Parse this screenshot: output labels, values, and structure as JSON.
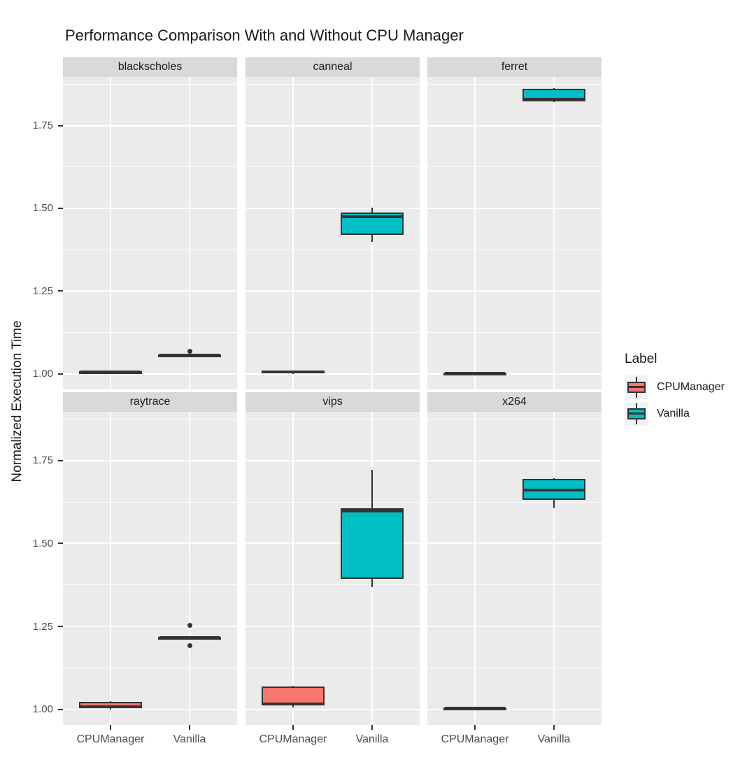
{
  "chart_data": {
    "type": "boxplot",
    "title": "Performance Comparison With and Without CPU Manager",
    "xlabel": "",
    "ylabel": "Normalized Execution Time",
    "categories": [
      "CPUManager",
      "Vanilla"
    ],
    "y_ticks": [
      "1.00",
      "1.25",
      "1.50",
      "1.75"
    ],
    "y_tick_values": [
      1.0,
      1.25,
      1.5,
      1.75
    ],
    "y_minor_values": [
      1.125,
      1.375,
      1.625,
      1.875
    ],
    "y_domain": [
      0.953,
      1.897
    ],
    "grid": "on",
    "facet_layout": {
      "rows": 2,
      "cols": 3
    },
    "legend": {
      "position": "right",
      "title": "Label",
      "entries": [
        {
          "label": "CPUManager",
          "color": "#F8766D"
        },
        {
          "label": "Vanilla",
          "color": "#00BFC4"
        }
      ]
    },
    "style": {
      "panel_bg": "#ebebeb",
      "strip_bg": "#d9d9d9",
      "gridline": "#ffffff",
      "box_stroke": "#333333",
      "tick_color": "#333333",
      "tick_label_color": "#4d4d4d"
    },
    "facets": [
      {
        "name": "blackscholes",
        "boxes": [
          {
            "group": "CPUManager",
            "color": "#F8766D",
            "whisker_low": 1.003,
            "q1": 1.004,
            "median": 1.006,
            "q3": 1.008,
            "whisker_high": 1.009,
            "outliers": []
          },
          {
            "group": "Vanilla",
            "color": "#00BFC4",
            "whisker_low": 1.052,
            "q1": 1.053,
            "median": 1.056,
            "q3": 1.059,
            "whisker_high": 1.06,
            "outliers": [
              1.068
            ]
          }
        ]
      },
      {
        "name": "canneal",
        "boxes": [
          {
            "group": "CPUManager",
            "color": "#F8766D",
            "whisker_low": 1.0,
            "q1": 1.002,
            "median": 1.006,
            "q3": 1.009,
            "whisker_high": 1.01,
            "outliers": []
          },
          {
            "group": "Vanilla",
            "color": "#00BFC4",
            "whisker_low": 1.398,
            "q1": 1.419,
            "median": 1.474,
            "q3": 1.487,
            "whisker_high": 1.503,
            "outliers": []
          }
        ]
      },
      {
        "name": "ferret",
        "boxes": [
          {
            "group": "CPUManager",
            "color": "#F8766D",
            "whisker_low": 0.999,
            "q1": 1.0,
            "median": 1.001,
            "q3": 1.003,
            "whisker_high": 1.004,
            "outliers": []
          },
          {
            "group": "Vanilla",
            "color": "#00BFC4",
            "whisker_low": 1.82,
            "q1": 1.824,
            "median": 1.829,
            "q3": 1.862,
            "whisker_high": 1.864,
            "outliers": []
          }
        ]
      },
      {
        "name": "raytrace",
        "boxes": [
          {
            "group": "CPUManager",
            "color": "#F8766D",
            "whisker_low": 1.0,
            "q1": 1.003,
            "median": 1.008,
            "q3": 1.022,
            "whisker_high": 1.024,
            "outliers": []
          },
          {
            "group": "Vanilla",
            "color": "#00BFC4",
            "whisker_low": 1.213,
            "q1": 1.214,
            "median": 1.216,
            "q3": 1.218,
            "whisker_high": 1.219,
            "outliers": [
              1.253,
              1.192
            ]
          }
        ]
      },
      {
        "name": "vips",
        "boxes": [
          {
            "group": "CPUManager",
            "color": "#F8766D",
            "whisker_low": 1.005,
            "q1": 1.012,
            "median": 1.016,
            "q3": 1.068,
            "whisker_high": 1.07,
            "outliers": []
          },
          {
            "group": "Vanilla",
            "color": "#00BFC4",
            "whisker_low": 1.368,
            "q1": 1.394,
            "median": 1.598,
            "q3": 1.607,
            "whisker_high": 1.723,
            "outliers": []
          }
        ]
      },
      {
        "name": "x264",
        "boxes": [
          {
            "group": "CPUManager",
            "color": "#F8766D",
            "whisker_low": 1.0,
            "q1": 1.001,
            "median": 1.003,
            "q3": 1.005,
            "whisker_high": 1.006,
            "outliers": []
          },
          {
            "group": "Vanilla",
            "color": "#00BFC4",
            "whisker_low": 1.606,
            "q1": 1.632,
            "median": 1.66,
            "q3": 1.694,
            "whisker_high": 1.696,
            "outliers": []
          }
        ]
      }
    ]
  }
}
